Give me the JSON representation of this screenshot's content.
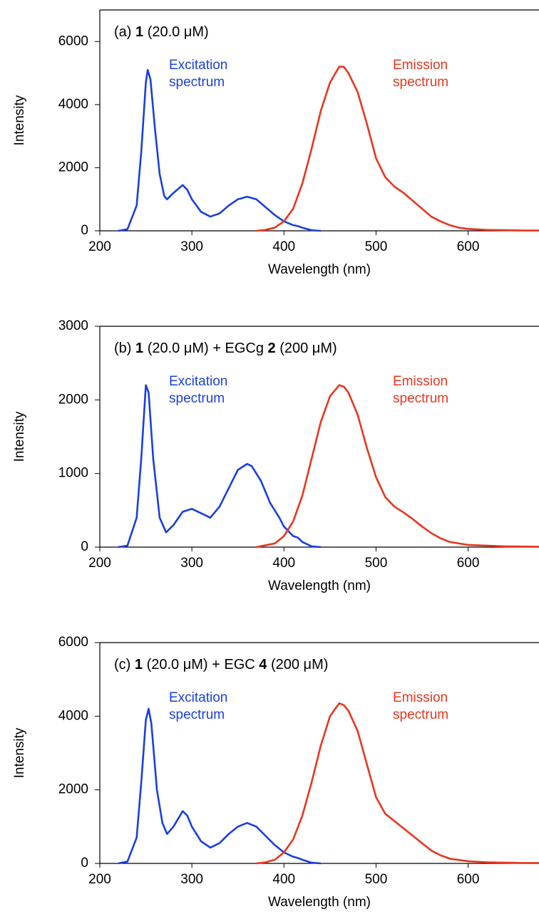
{
  "chart_data": [
    {
      "type": "line",
      "title": [
        {
          "text": "(a)"
        },
        {
          "text": "1",
          "bold": true
        },
        {
          "text": "(20.0 μM)"
        }
      ],
      "x_label": "Wavelength (nm)",
      "y_label": "Intensity",
      "xlim": [
        200,
        677
      ],
      "xticks": [
        200,
        300,
        400,
        500,
        600
      ],
      "ylim": [
        0,
        7000
      ],
      "yticks": [
        0,
        2000,
        4000,
        6000
      ],
      "series": [
        {
          "name": "Excitation spectrum",
          "color": "#1a3fe0",
          "x": [
            220,
            230,
            240,
            245,
            250,
            252,
            255,
            260,
            265,
            270,
            273,
            280,
            290,
            295,
            300,
            310,
            320,
            330,
            340,
            350,
            360,
            370,
            380,
            390,
            400,
            410,
            415,
            420,
            430,
            440
          ],
          "values": [
            0,
            50,
            800,
            2500,
            4700,
            5100,
            4800,
            3200,
            1800,
            1100,
            1000,
            1200,
            1450,
            1300,
            1000,
            600,
            450,
            550,
            800,
            1000,
            1080,
            1000,
            750,
            500,
            300,
            180,
            150,
            100,
            20,
            0
          ]
        },
        {
          "name": "Emission spectrum",
          "color": "#e8361e",
          "x": [
            370,
            380,
            390,
            400,
            410,
            420,
            430,
            440,
            450,
            460,
            465,
            470,
            480,
            490,
            500,
            510,
            520,
            530,
            540,
            550,
            560,
            570,
            580,
            590,
            600,
            620,
            640,
            660,
            677
          ],
          "values": [
            0,
            30,
            100,
            300,
            700,
            1500,
            2600,
            3800,
            4700,
            5200,
            5200,
            5000,
            4400,
            3400,
            2300,
            1700,
            1400,
            1200,
            950,
            700,
            450,
            300,
            180,
            100,
            60,
            30,
            20,
            10,
            10
          ]
        }
      ]
    },
    {
      "type": "line",
      "title": [
        {
          "text": "(b)"
        },
        {
          "text": "1",
          "bold": true
        },
        {
          "text": "(20.0 μM) + EGCg"
        },
        {
          "text": "2",
          "bold": true
        },
        {
          "text": "(200 μM)"
        }
      ],
      "x_label": "Wavelength (nm)",
      "y_label": "Intensity",
      "xlim": [
        200,
        677
      ],
      "xticks": [
        200,
        300,
        400,
        500,
        600
      ],
      "ylim": [
        0,
        3000
      ],
      "yticks": [
        0,
        1000,
        2000,
        3000
      ],
      "series": [
        {
          "name": "Excitation spectrum",
          "color": "#1a3fe0",
          "x": [
            220,
            230,
            240,
            245,
            250,
            253,
            258,
            265,
            272,
            280,
            290,
            300,
            310,
            320,
            330,
            340,
            350,
            360,
            365,
            375,
            385,
            395,
            400,
            410,
            415,
            420,
            430,
            440
          ],
          "values": [
            0,
            20,
            400,
            1200,
            2200,
            2100,
            1200,
            400,
            200,
            300,
            480,
            520,
            460,
            400,
            550,
            800,
            1050,
            1130,
            1100,
            900,
            600,
            400,
            280,
            150,
            130,
            70,
            10,
            0
          ]
        },
        {
          "name": "Emission spectrum",
          "color": "#e8361e",
          "x": [
            370,
            390,
            400,
            410,
            420,
            430,
            440,
            450,
            460,
            465,
            470,
            480,
            490,
            500,
            510,
            520,
            530,
            540,
            550,
            560,
            570,
            580,
            600,
            640,
            677
          ],
          "values": [
            0,
            50,
            150,
            350,
            700,
            1200,
            1700,
            2050,
            2200,
            2180,
            2100,
            1800,
            1350,
            950,
            680,
            550,
            470,
            380,
            280,
            190,
            120,
            70,
            30,
            10,
            5
          ]
        }
      ]
    },
    {
      "type": "line",
      "title": [
        {
          "text": "(c)"
        },
        {
          "text": "1",
          "bold": true
        },
        {
          "text": "(20.0 μM) + EGC"
        },
        {
          "text": "4",
          "bold": true
        },
        {
          "text": "(200 μM)"
        }
      ],
      "x_label": "Wavelength (nm)",
      "y_label": "Intensity",
      "xlim": [
        200,
        677
      ],
      "xticks": [
        200,
        300,
        400,
        500,
        600
      ],
      "ylim": [
        0,
        6000
      ],
      "yticks": [
        0,
        2000,
        4000,
        6000
      ],
      "series": [
        {
          "name": "Excitation spectrum",
          "color": "#1a3fe0",
          "x": [
            220,
            230,
            240,
            245,
            250,
            253,
            256,
            262,
            268,
            273,
            280,
            290,
            295,
            300,
            310,
            320,
            330,
            340,
            350,
            360,
            370,
            380,
            390,
            400,
            410,
            415,
            420,
            430,
            440
          ],
          "values": [
            0,
            50,
            700,
            2200,
            3900,
            4200,
            3800,
            2000,
            1100,
            800,
            1000,
            1420,
            1300,
            1000,
            600,
            430,
            550,
            800,
            1000,
            1100,
            1000,
            750,
            500,
            300,
            180,
            150,
            100,
            20,
            0
          ]
        },
        {
          "name": "Emission spectrum",
          "color": "#e8361e",
          "x": [
            370,
            380,
            390,
            400,
            410,
            420,
            430,
            440,
            450,
            460,
            465,
            470,
            480,
            490,
            500,
            510,
            520,
            530,
            540,
            550,
            560,
            570,
            580,
            600,
            620,
            660,
            677
          ],
          "values": [
            0,
            30,
            100,
            300,
            650,
            1300,
            2200,
            3200,
            4000,
            4350,
            4300,
            4150,
            3600,
            2700,
            1800,
            1350,
            1150,
            950,
            750,
            550,
            350,
            220,
            130,
            60,
            30,
            10,
            10
          ]
        }
      ]
    }
  ]
}
